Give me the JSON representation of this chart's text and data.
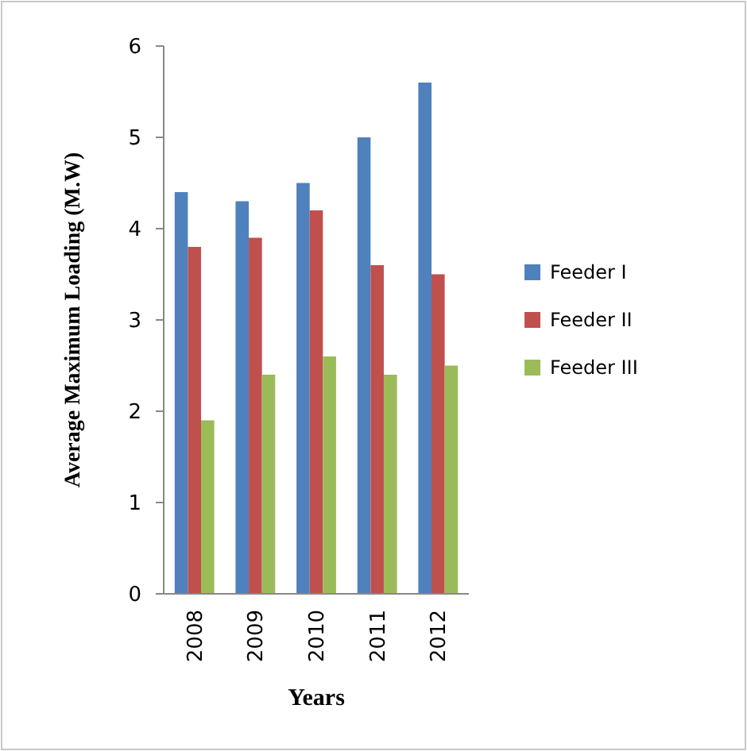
{
  "chart_data": {
    "type": "bar",
    "xlabel": "Years",
    "ylabel": "Average Maximum Loading (M.W)",
    "categories": [
      "2008",
      "2009",
      "2010",
      "2011",
      "2012"
    ],
    "series": [
      {
        "name": "Feeder I",
        "color": "#4f81bd",
        "values": [
          4.4,
          4.3,
          4.5,
          5.0,
          5.6
        ]
      },
      {
        "name": "Feeder II",
        "color": "#c0504d",
        "values": [
          3.8,
          3.9,
          4.2,
          3.6,
          3.5
        ]
      },
      {
        "name": "Feeder III",
        "color": "#9bbb59",
        "values": [
          1.9,
          2.4,
          2.6,
          2.4,
          2.5
        ]
      }
    ],
    "ylim": [
      0,
      6
    ],
    "yticks": [
      0,
      1,
      2,
      3,
      4,
      5,
      6
    ],
    "grid": false,
    "legend": "right"
  }
}
